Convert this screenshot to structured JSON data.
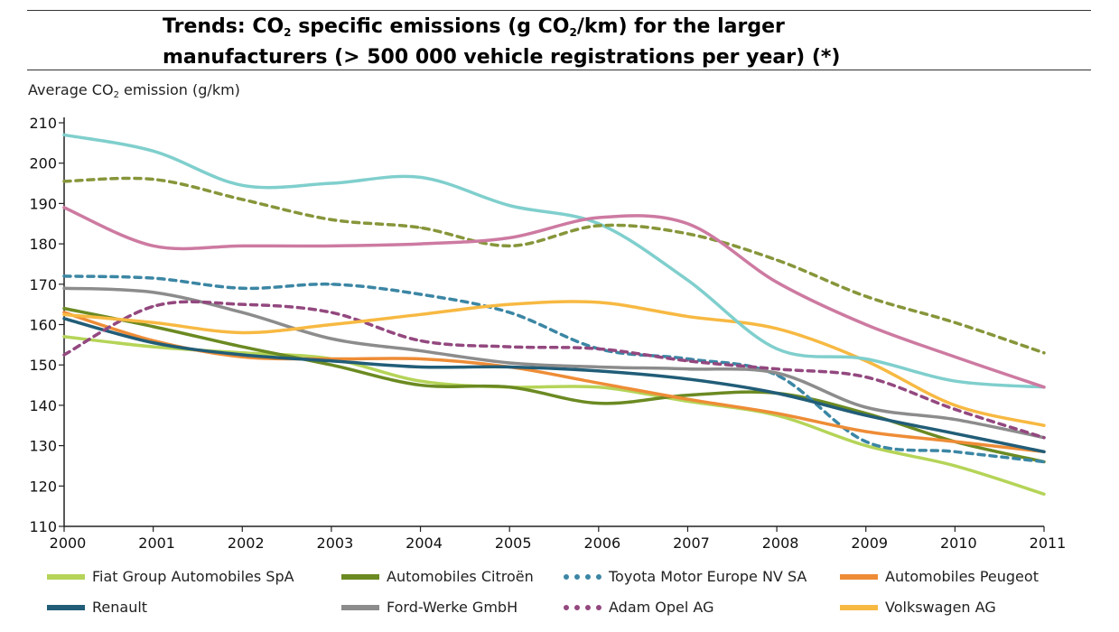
{
  "title": {
    "line1_pre": "Trends: CO",
    "line1_sub": "2",
    "line1_mid": " specific emissions (g CO",
    "line1_sub2": "2",
    "line1_post": "/km) for the larger",
    "line2": "manufacturers (> 500 000 vehicle registrations per year) (*)"
  },
  "ylabel": {
    "pre": "Average CO",
    "sub": "2",
    "post": " emission (g/km)"
  },
  "chart_data": {
    "type": "line",
    "x": [
      2000,
      2001,
      2002,
      2003,
      2004,
      2005,
      2006,
      2007,
      2008,
      2009,
      2010,
      2011
    ],
    "ylim": [
      110,
      210
    ],
    "yticks": [
      110,
      120,
      130,
      140,
      150,
      160,
      170,
      180,
      190,
      200,
      210
    ],
    "xticks": [
      "2000",
      "2001",
      "2002",
      "2003",
      "2004",
      "2005",
      "2006",
      "2007",
      "2008",
      "2009",
      "2010",
      "2011"
    ],
    "grid": false,
    "legend_position": "bottom",
    "series": [
      {
        "name": "Fiat Group Automobiles SpA",
        "color": "#b5d458",
        "dashed": false,
        "values": [
          157,
          154.5,
          153,
          151.5,
          146,
          144.5,
          144.5,
          141,
          137.5,
          130,
          125,
          118
        ]
      },
      {
        "name": "Automobiles Citroën",
        "color": "#6b8a22",
        "dashed": false,
        "values": [
          164,
          159.5,
          154.5,
          150,
          145,
          144.5,
          140.5,
          142.5,
          143,
          138,
          131,
          126
        ]
      },
      {
        "name": "Toyota Motor Europe NV SA",
        "color": "#3b86a4",
        "dashed": true,
        "values": [
          172,
          171.5,
          169,
          170,
          167.5,
          163,
          154,
          151.5,
          147.5,
          131,
          128.5,
          126
        ]
      },
      {
        "name": "Automobiles Peugeot",
        "color": "#ee8c36",
        "dashed": false,
        "values": [
          163,
          156,
          152,
          151.5,
          151.5,
          149.5,
          145.5,
          141.5,
          138,
          133.5,
          131,
          128.5
        ]
      },
      {
        "name": "Renault",
        "color": "#215d78",
        "dashed": false,
        "values": [
          161.5,
          155.5,
          152.5,
          151,
          149.5,
          149.5,
          148.5,
          146.5,
          143,
          137.5,
          133,
          128.5
        ]
      },
      {
        "name": "Ford-Werke GmbH",
        "color": "#8c8c8c",
        "dashed": false,
        "values": [
          169,
          168,
          163,
          156.5,
          153.5,
          150.5,
          149.5,
          149,
          148,
          139.5,
          136.5,
          132
        ]
      },
      {
        "name": "Adam Opel AG",
        "color": "#93487f",
        "dashed": true,
        "values": [
          152.5,
          164.5,
          165,
          163,
          156,
          154.5,
          154,
          151,
          149,
          147,
          139,
          132
        ]
      },
      {
        "name": "Volkswagen AG",
        "color": "#f7b942",
        "dashed": false,
        "values": [
          162.5,
          160.5,
          158,
          160,
          162.5,
          165,
          165.5,
          162,
          159,
          151,
          140,
          135
        ]
      },
      {
        "name": "",
        "color": "#7fcfcd",
        "dashed": false,
        "values": [
          207,
          203,
          194.5,
          195,
          196.5,
          189.5,
          185,
          171,
          154,
          151.5,
          146,
          144.5
        ]
      },
      {
        "name": "",
        "color": "#86963a",
        "dashed": true,
        "values": [
          195.5,
          196,
          191,
          186,
          184,
          179.5,
          184.5,
          182.5,
          176,
          167,
          160.5,
          153
        ]
      },
      {
        "name": "",
        "color": "#cd7aa1",
        "dashed": false,
        "values": [
          189,
          179.5,
          179.5,
          179.5,
          180,
          181.5,
          186.5,
          185,
          170.5,
          160,
          152,
          144.5
        ]
      }
    ]
  }
}
